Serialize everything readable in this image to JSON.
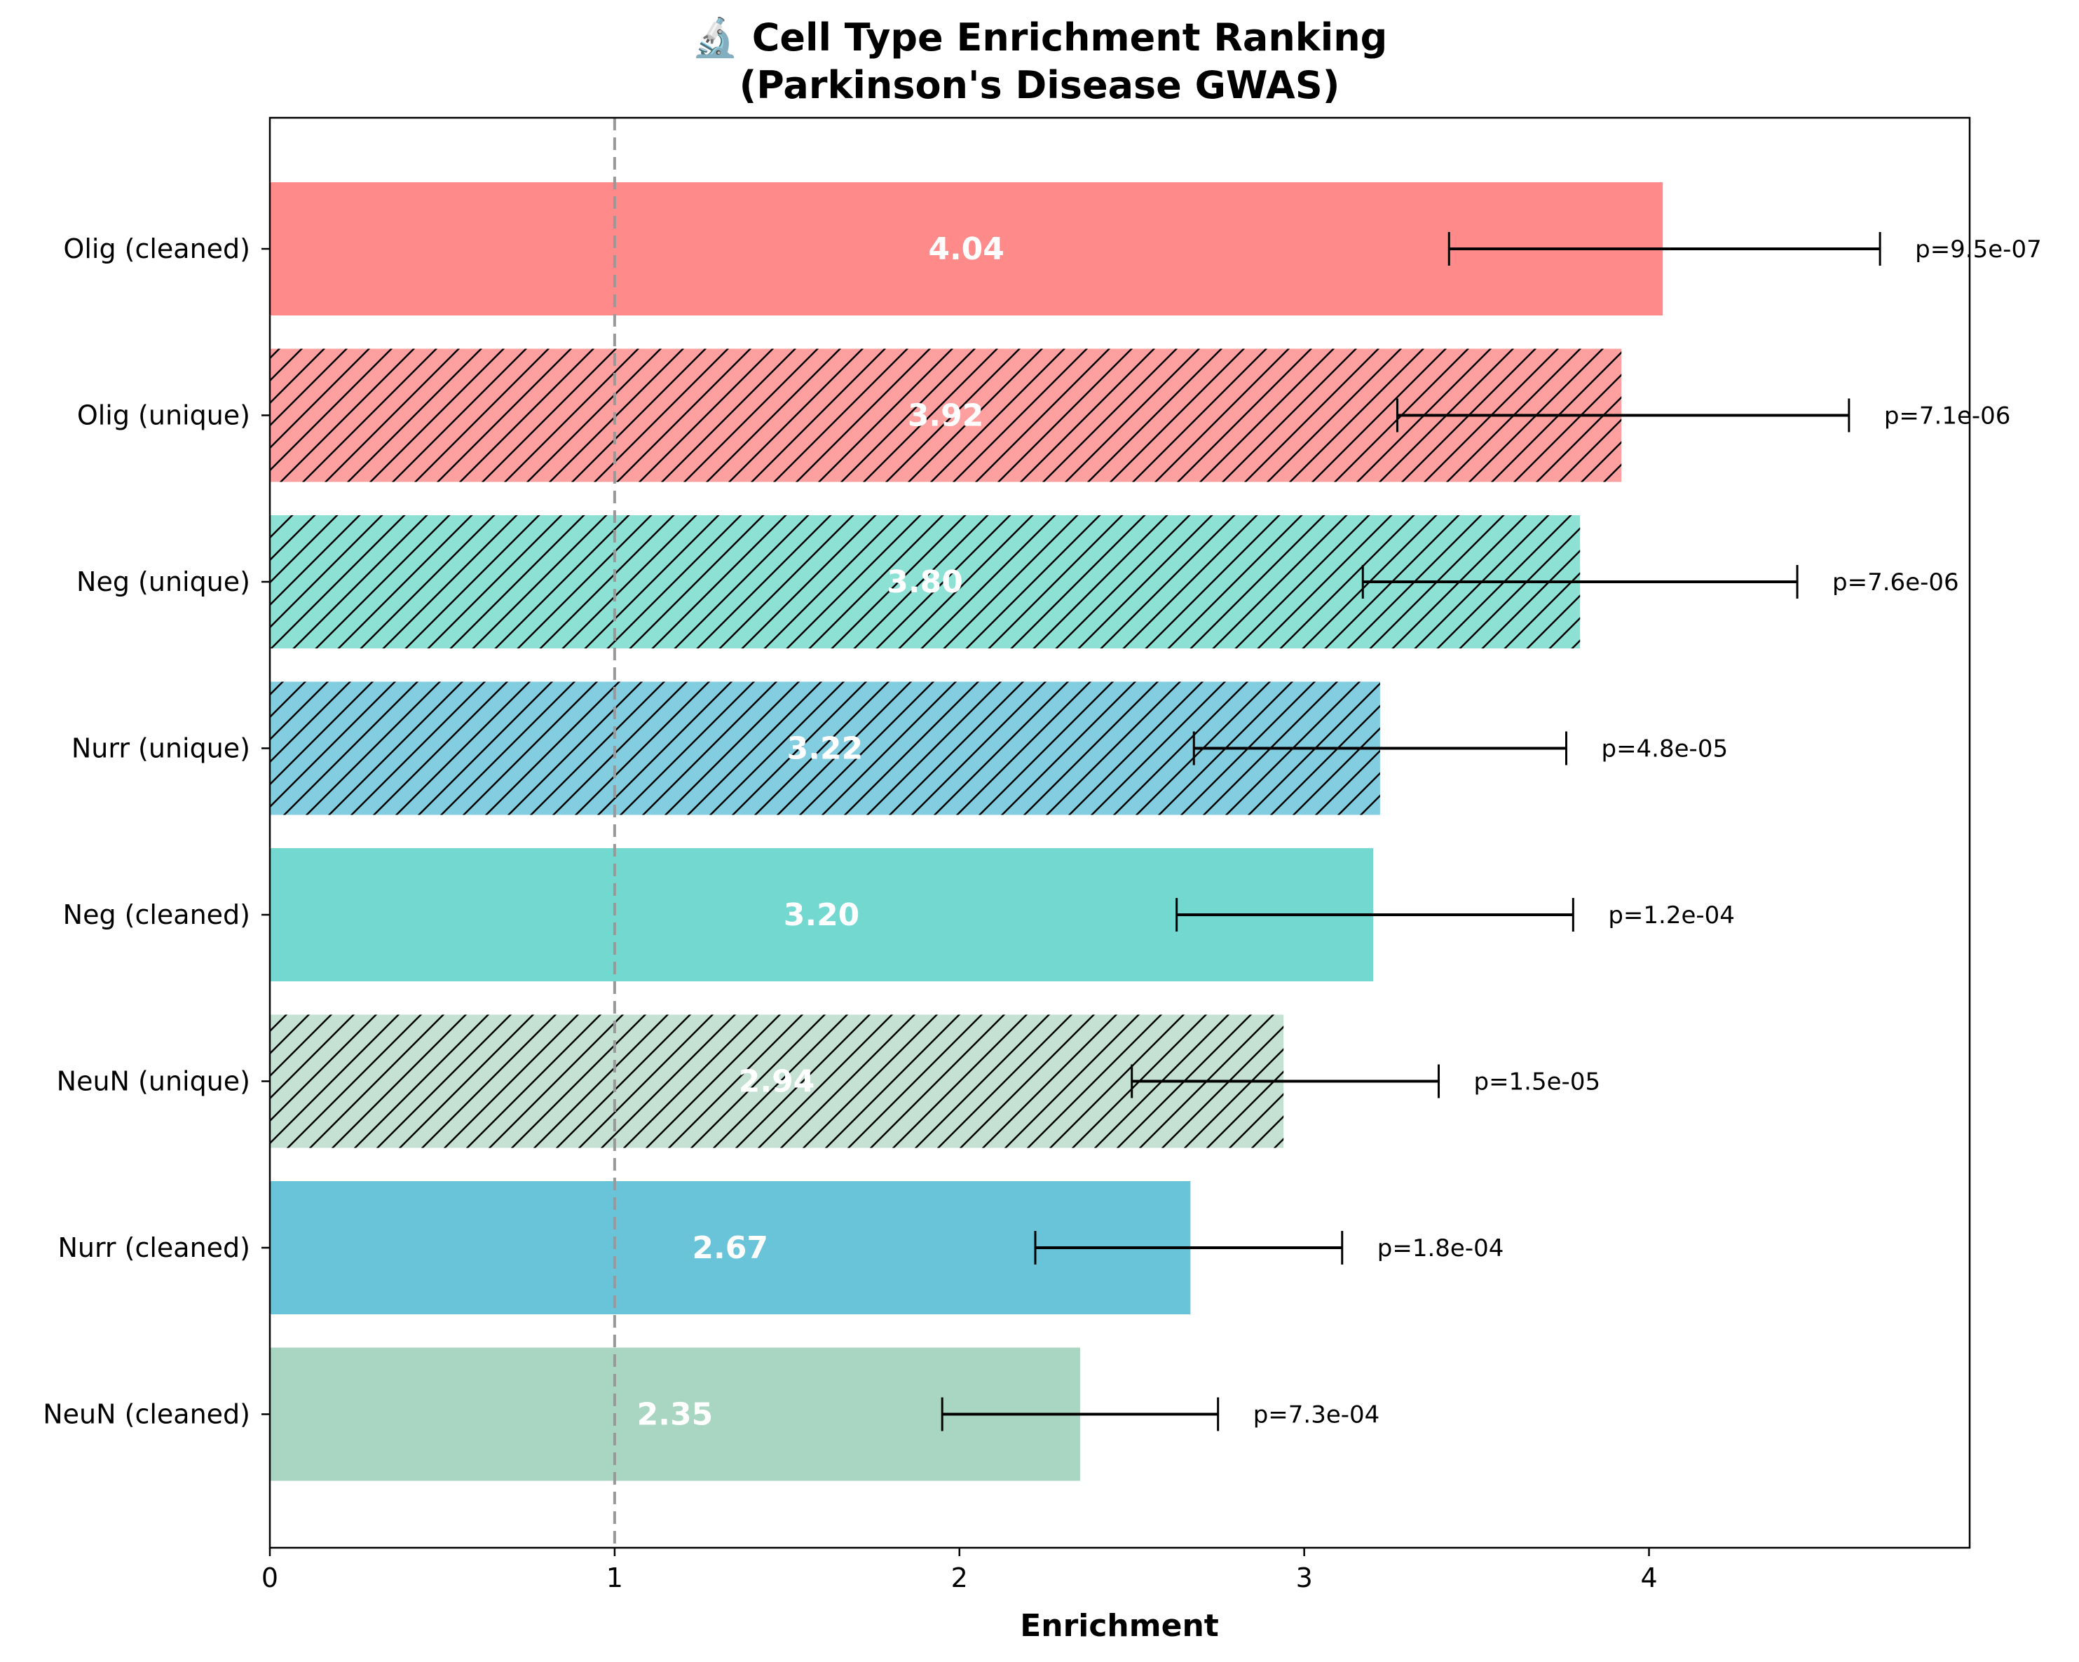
{
  "chart_data": {
    "type": "bar",
    "orientation": "horizontal",
    "title_line1": "🔬 Cell Type Enrichment Ranking",
    "title_line2": "(Parkinson's Disease GWAS)",
    "xlabel": "Enrichment",
    "ylabel": "",
    "xlim": [
      0,
      4.93
    ],
    "xticks": [
      "0",
      "1",
      "2",
      "3",
      "4"
    ],
    "reference_line": 1,
    "grid": false,
    "bars": [
      {
        "category": "Olig (cleaned)",
        "value": 4.04,
        "value_label": "4.04",
        "ci_low": 3.42,
        "ci_high": 4.67,
        "p_label": "p=9.5e-07",
        "color": "#ff8a8a",
        "hatched": false
      },
      {
        "category": "Olig (unique)",
        "value": 3.92,
        "value_label": "3.92",
        "ci_low": 3.27,
        "ci_high": 4.58,
        "p_label": "p=7.1e-06",
        "color": "#ffa0a0",
        "hatched": true
      },
      {
        "category": "Neg (unique)",
        "value": 3.8,
        "value_label": "3.80",
        "ci_low": 3.17,
        "ci_high": 4.43,
        "p_label": "p=7.6e-06",
        "color": "#8ce0d4",
        "hatched": true
      },
      {
        "category": "Nurr (unique)",
        "value": 3.22,
        "value_label": "3.22",
        "ci_low": 2.68,
        "ci_high": 3.76,
        "p_label": "p=4.8e-05",
        "color": "#82cde0",
        "hatched": true
      },
      {
        "category": "Neg (cleaned)",
        "value": 3.2,
        "value_label": "3.20",
        "ci_low": 2.63,
        "ci_high": 3.78,
        "p_label": "p=1.2e-04",
        "color": "#72d8d0",
        "hatched": false
      },
      {
        "category": "NeuN (unique)",
        "value": 2.94,
        "value_label": "2.94",
        "ci_low": 2.5,
        "ci_high": 3.39,
        "p_label": "p=1.5e-05",
        "color": "#c4e1d4",
        "hatched": true
      },
      {
        "category": "Nurr (cleaned)",
        "value": 2.67,
        "value_label": "2.67",
        "ci_low": 2.22,
        "ci_high": 3.11,
        "p_label": "p=1.8e-04",
        "color": "#6ac4d9",
        "hatched": false
      },
      {
        "category": "NeuN (cleaned)",
        "value": 2.35,
        "value_label": "2.35",
        "ci_low": 1.95,
        "ci_high": 2.75,
        "p_label": "p=7.3e-04",
        "color": "#a9d6c3",
        "hatched": false
      }
    ]
  }
}
